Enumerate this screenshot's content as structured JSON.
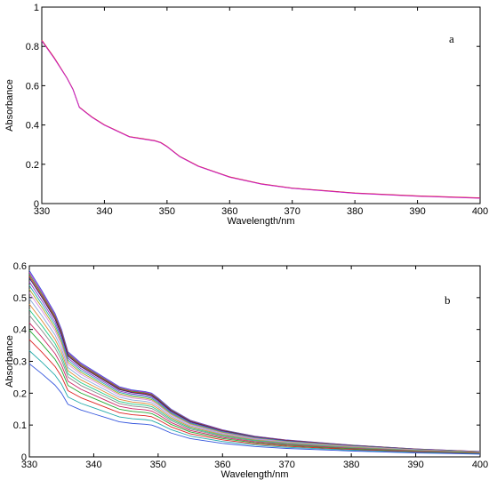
{
  "chart_data": [
    {
      "type": "line",
      "panel_label": "a",
      "xlabel": "Wavelength/nm",
      "ylabel": "Absorbance",
      "xlim": [
        330,
        400
      ],
      "ylim": [
        0,
        1
      ],
      "xticks": [
        330,
        340,
        350,
        360,
        370,
        380,
        390,
        400
      ],
      "yticks": [
        0,
        0.2,
        0.4,
        0.6,
        0.8,
        1
      ],
      "ytick_labels": [
        "0",
        "0.2",
        "0.4",
        "0.6",
        "0.8",
        "1"
      ],
      "grid": false,
      "x": [
        330,
        332,
        334,
        335,
        336,
        338,
        340,
        342,
        344,
        346,
        348,
        349,
        350,
        352,
        355,
        360,
        365,
        370,
        380,
        390,
        400
      ],
      "series": [
        {
          "color": "#3355dd",
          "values": [
            0.83,
            0.74,
            0.64,
            0.58,
            0.49,
            0.44,
            0.4,
            0.37,
            0.34,
            0.33,
            0.32,
            0.31,
            0.29,
            0.24,
            0.19,
            0.135,
            0.1,
            0.078,
            0.053,
            0.038,
            0.028
          ]
        },
        {
          "color": "#dd2222",
          "values": [
            0.832,
            0.742,
            0.641,
            0.581,
            0.491,
            0.441,
            0.401,
            0.371,
            0.341,
            0.331,
            0.321,
            0.311,
            0.291,
            0.241,
            0.191,
            0.136,
            0.101,
            0.079,
            0.054,
            0.039,
            0.029
          ]
        },
        {
          "color": "#cc22cc",
          "values": [
            0.828,
            0.738,
            0.639,
            0.579,
            0.489,
            0.439,
            0.399,
            0.369,
            0.339,
            0.329,
            0.319,
            0.309,
            0.289,
            0.239,
            0.189,
            0.134,
            0.099,
            0.077,
            0.052,
            0.037,
            0.027
          ]
        }
      ]
    },
    {
      "type": "line",
      "panel_label": "b",
      "xlabel": "Wavelength/nm",
      "ylabel": "Absorbance",
      "xlim": [
        330,
        400
      ],
      "ylim": [
        0,
        0.6
      ],
      "xticks": [
        330,
        340,
        350,
        360,
        370,
        380,
        390,
        400
      ],
      "yticks": [
        0,
        0.1,
        0.2,
        0.3,
        0.4,
        0.5,
        0.6
      ],
      "ytick_labels": [
        "0",
        "0.1",
        "0.2",
        "0.3",
        "0.4",
        "0.5",
        "0.6"
      ],
      "grid": false,
      "x": [
        330,
        332,
        334,
        335,
        336,
        338,
        340,
        342,
        344,
        346,
        348,
        349,
        350,
        352,
        355,
        360,
        365,
        370,
        380,
        390,
        400
      ],
      "base_values": [
        0.585,
        0.52,
        0.45,
        0.4,
        0.33,
        0.295,
        0.27,
        0.245,
        0.22,
        0.21,
        0.205,
        0.2,
        0.185,
        0.15,
        0.115,
        0.085,
        0.065,
        0.053,
        0.037,
        0.025,
        0.017
      ],
      "series": [
        {
          "color": "#3355dd",
          "scale": 1.0
        },
        {
          "color": "#cc22cc",
          "scale": 0.99
        },
        {
          "color": "#22aa33",
          "scale": 0.98
        },
        {
          "color": "#dd2222",
          "scale": 0.97
        },
        {
          "color": "#222266",
          "scale": 0.96
        },
        {
          "color": "#8833cc",
          "scale": 0.94
        },
        {
          "color": "#22aaaa",
          "scale": 0.92
        },
        {
          "color": "#aaaa22",
          "scale": 0.9
        },
        {
          "color": "#dd88dd",
          "scale": 0.88
        },
        {
          "color": "#88aadd",
          "scale": 0.85
        },
        {
          "color": "#dd8833",
          "scale": 0.82
        },
        {
          "color": "#22cc88",
          "scale": 0.79
        },
        {
          "color": "#888888",
          "scale": 0.76
        },
        {
          "color": "#cc2266",
          "scale": 0.72
        },
        {
          "color": "#22aa33",
          "scale": 0.68
        },
        {
          "color": "#dd2222",
          "scale": 0.63
        },
        {
          "color": "#22aaaa",
          "scale": 0.57
        },
        {
          "color": "#3355dd",
          "scale": 0.5
        }
      ]
    }
  ]
}
